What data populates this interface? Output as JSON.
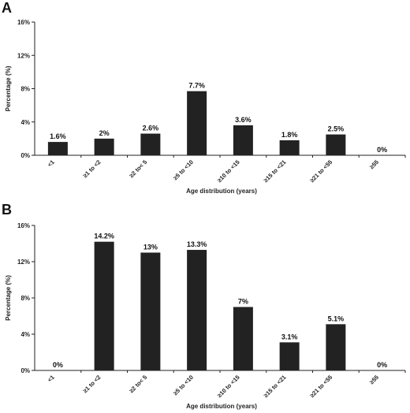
{
  "chart_data": [
    {
      "panel": "A",
      "type": "bar",
      "categories": [
        "<1",
        "≥1 to <2",
        "≥2 to< 5",
        "≥5 to <10",
        "≥10 to <15",
        "≥15 to <21",
        "≥21 to <55",
        "≥55"
      ],
      "values": [
        1.6,
        2,
        2.6,
        7.7,
        3.6,
        1.8,
        2.5,
        0
      ],
      "data_labels": [
        "1.6%",
        "2%",
        "2.6%",
        "7.7%",
        "3.6%",
        "1.8%",
        "2.5%",
        "0%"
      ],
      "ylabel": "Percentage (%)",
      "xlabel": "Age distribution (years)",
      "ylim": [
        0,
        16
      ],
      "yticks": [
        0,
        4,
        8,
        12,
        16
      ],
      "ytick_labels": [
        "0%",
        "4%",
        "8%",
        "12%",
        "16%"
      ],
      "grid": false,
      "bar_color": "#222222"
    },
    {
      "panel": "B",
      "type": "bar",
      "categories": [
        "<1",
        "≥1 to <2",
        "≥2 to< 5",
        "≥5 to <10",
        "≥10 to <15",
        "≥15 to <21",
        "≥21 to <55",
        "≥55"
      ],
      "values": [
        0,
        14.2,
        13,
        13.3,
        7,
        3.1,
        5.1,
        0
      ],
      "data_labels": [
        "0%",
        "14.2%",
        "13%",
        "13.3%",
        "7%",
        "3.1%",
        "5.1%",
        "0%"
      ],
      "ylabel": "Percentage (%)",
      "xlabel": "Age distribution (years)",
      "ylim": [
        0,
        16
      ],
      "yticks": [
        0,
        4,
        8,
        12,
        16
      ],
      "ytick_labels": [
        "0%",
        "4%",
        "8%",
        "12%",
        "16%"
      ],
      "grid": false,
      "bar_color": "#222222"
    }
  ]
}
